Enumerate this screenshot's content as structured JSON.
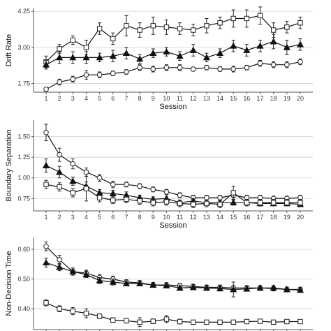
{
  "chart_data": [
    {
      "type": "line",
      "ylabel": "Drift Rate",
      "xlabel": "Session",
      "x": [
        1,
        2,
        3,
        4,
        5,
        6,
        7,
        8,
        9,
        10,
        11,
        12,
        13,
        14,
        15,
        16,
        17,
        18,
        19,
        20
      ],
      "x_ticks": [
        "1",
        "2",
        "3",
        "4",
        "5",
        "6",
        "7",
        "8",
        "9",
        "10",
        "11",
        "12",
        "13",
        "14",
        "15",
        "16",
        "17",
        "18",
        "19",
        "20"
      ],
      "ylim": [
        1.45,
        4.35
      ],
      "y_ticks": [
        1.75,
        3.0,
        4.25
      ],
      "y_tick_labels": [
        "1.75",
        "3.00",
        "4.25"
      ],
      "grid": true,
      "series": [
        {
          "marker": "square",
          "values": [
            2.5,
            2.95,
            3.25,
            3.0,
            3.65,
            3.3,
            3.75,
            3.6,
            3.75,
            3.7,
            3.65,
            3.6,
            3.75,
            3.85,
            4.0,
            4.0,
            4.1,
            3.6,
            3.7,
            3.85
          ],
          "err": [
            0.2,
            0.15,
            0.15,
            0.25,
            0.2,
            0.2,
            0.35,
            0.25,
            0.3,
            0.25,
            0.2,
            0.2,
            0.25,
            0.2,
            0.3,
            0.3,
            0.3,
            0.25,
            0.2,
            0.2
          ]
        },
        {
          "marker": "triangle",
          "values": [
            2.4,
            2.65,
            2.65,
            2.65,
            2.65,
            2.7,
            2.8,
            2.6,
            2.8,
            2.85,
            2.7,
            2.9,
            2.65,
            2.8,
            3.05,
            2.9,
            3.05,
            3.2,
            3.0,
            3.1
          ],
          "err": [
            0.15,
            0.2,
            0.2,
            0.2,
            0.15,
            0.2,
            0.2,
            0.15,
            0.15,
            0.15,
            0.15,
            0.2,
            0.15,
            0.15,
            0.2,
            0.2,
            0.2,
            0.25,
            0.25,
            0.2
          ]
        },
        {
          "marker": "circle",
          "values": [
            1.55,
            1.8,
            1.9,
            2.05,
            2.05,
            2.1,
            2.15,
            2.3,
            2.25,
            2.3,
            2.3,
            2.25,
            2.3,
            2.25,
            2.25,
            2.3,
            2.45,
            2.4,
            2.4,
            2.5
          ],
          "err": [
            0.07,
            0.1,
            0.1,
            0.15,
            0.1,
            0.08,
            0.08,
            0.1,
            0.1,
            0.1,
            0.1,
            0.07,
            0.08,
            0.08,
            0.1,
            0.08,
            0.1,
            0.1,
            0.1,
            0.1
          ]
        }
      ]
    },
    {
      "type": "line",
      "ylabel": "Boundary Separation",
      "xlabel": "Session",
      "x": [
        1,
        2,
        3,
        4,
        5,
        6,
        7,
        8,
        9,
        10,
        11,
        12,
        13,
        14,
        15,
        16,
        17,
        18,
        19,
        20
      ],
      "x_ticks": [
        "1",
        "2",
        "3",
        "4",
        "5",
        "6",
        "7",
        "8",
        "9",
        "10",
        "11",
        "12",
        "13",
        "14",
        "15",
        "16",
        "17",
        "18",
        "19",
        "20"
      ],
      "ylim": [
        0.6,
        1.7
      ],
      "y_ticks": [
        0.75,
        1.0,
        1.25,
        1.5
      ],
      "y_tick_labels": [
        "0.75",
        "1.00",
        "1.25",
        "1.50"
      ],
      "grid": true,
      "series": [
        {
          "marker": "circle",
          "values": [
            1.55,
            1.28,
            1.17,
            1.07,
            1.0,
            0.92,
            0.92,
            0.9,
            0.86,
            0.83,
            0.79,
            0.76,
            0.76,
            0.76,
            0.79,
            0.76,
            0.76,
            0.75,
            0.75,
            0.76
          ],
          "err": [
            0.1,
            0.08,
            0.06,
            0.05,
            0.04,
            0.04,
            0.03,
            0.03,
            0.03,
            0.03,
            0.03,
            0.03,
            0.03,
            0.03,
            0.03,
            0.03,
            0.03,
            0.03,
            0.03,
            0.03
          ]
        },
        {
          "marker": "triangle",
          "values": [
            1.15,
            1.07,
            0.96,
            0.9,
            0.82,
            0.81,
            0.79,
            0.76,
            0.74,
            0.75,
            0.7,
            0.72,
            0.7,
            0.7,
            0.7,
            0.7,
            0.69,
            0.69,
            0.69,
            0.68
          ],
          "err": [
            0.08,
            0.07,
            0.05,
            0.05,
            0.04,
            0.04,
            0.04,
            0.03,
            0.03,
            0.03,
            0.03,
            0.03,
            0.03,
            0.03,
            0.03,
            0.03,
            0.03,
            0.03,
            0.03,
            0.03
          ]
        },
        {
          "marker": "square",
          "values": [
            0.92,
            0.89,
            0.82,
            0.87,
            0.76,
            0.73,
            0.74,
            0.72,
            0.7,
            0.71,
            0.69,
            0.68,
            0.69,
            0.68,
            0.82,
            0.7,
            0.7,
            0.7,
            0.7,
            0.7
          ],
          "err": [
            0.05,
            0.05,
            0.05,
            0.15,
            0.05,
            0.04,
            0.04,
            0.04,
            0.04,
            0.04,
            0.04,
            0.04,
            0.04,
            0.04,
            0.08,
            0.04,
            0.04,
            0.04,
            0.04,
            0.04
          ]
        }
      ]
    },
    {
      "type": "line",
      "ylabel": "Non-Decision Time",
      "xlabel": "",
      "x": [
        1,
        2,
        3,
        4,
        5,
        6,
        7,
        8,
        9,
        10,
        11,
        12,
        13,
        14,
        15,
        16,
        17,
        18,
        19,
        20
      ],
      "x_ticks": [],
      "ylim": [
        0.33,
        0.64
      ],
      "y_ticks": [
        0.4,
        0.5,
        0.6
      ],
      "y_tick_labels": [
        "0.40",
        "0.50",
        "0.60"
      ],
      "grid": true,
      "series": [
        {
          "marker": "circle",
          "values": [
            0.61,
            0.565,
            0.525,
            0.52,
            0.505,
            0.5,
            0.49,
            0.487,
            0.48,
            0.48,
            0.478,
            0.475,
            0.472,
            0.472,
            0.47,
            0.47,
            0.47,
            0.468,
            0.465,
            0.465
          ],
          "err": [
            0.015,
            0.015,
            0.012,
            0.01,
            0.01,
            0.01,
            0.008,
            0.008,
            0.008,
            0.008,
            0.008,
            0.008,
            0.008,
            0.008,
            0.008,
            0.008,
            0.008,
            0.008,
            0.008,
            0.008
          ]
        },
        {
          "marker": "triangle",
          "values": [
            0.555,
            0.54,
            0.525,
            0.515,
            0.495,
            0.49,
            0.485,
            0.485,
            0.48,
            0.478,
            0.47,
            0.472,
            0.47,
            0.468,
            0.465,
            0.467,
            0.47,
            0.47,
            0.465,
            0.463
          ],
          "err": [
            0.015,
            0.012,
            0.012,
            0.01,
            0.01,
            0.01,
            0.008,
            0.008,
            0.008,
            0.008,
            0.008,
            0.008,
            0.008,
            0.008,
            0.025,
            0.008,
            0.008,
            0.008,
            0.008,
            0.008
          ]
        },
        {
          "marker": "square",
          "values": [
            0.42,
            0.4,
            0.392,
            0.385,
            0.375,
            0.362,
            0.36,
            0.355,
            0.358,
            0.365,
            0.357,
            0.355,
            0.355,
            0.355,
            0.355,
            0.357,
            0.358,
            0.355,
            0.357,
            0.357
          ],
          "err": [
            0.01,
            0.01,
            0.012,
            0.015,
            0.008,
            0.008,
            0.008,
            0.015,
            0.008,
            0.012,
            0.008,
            0.006,
            0.006,
            0.006,
            0.006,
            0.006,
            0.006,
            0.006,
            0.006,
            0.006
          ]
        }
      ]
    }
  ]
}
